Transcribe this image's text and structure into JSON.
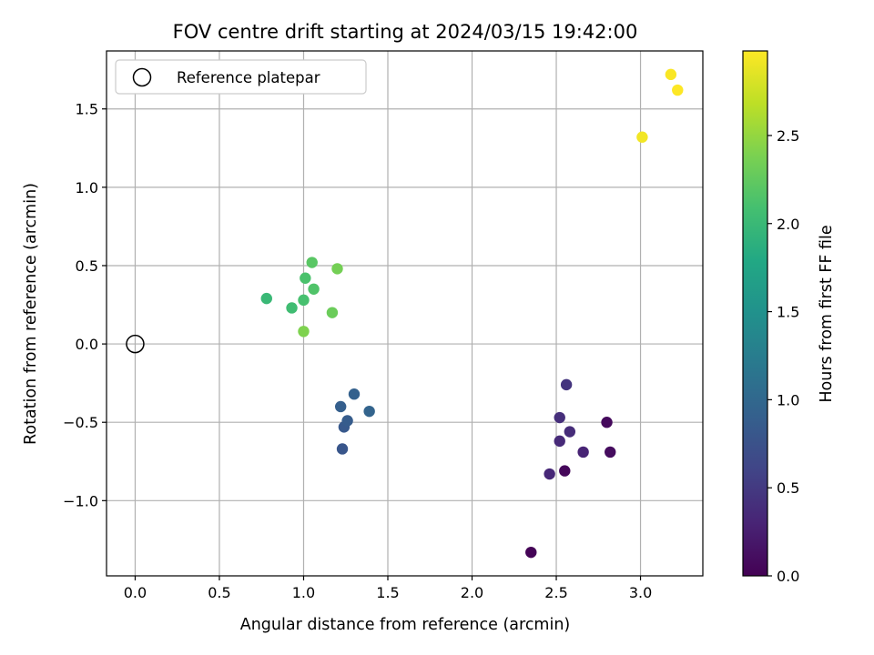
{
  "chart_data": {
    "type": "scatter",
    "title": "FOV centre drift starting at 2024/03/15 19:42:00",
    "xlabel": "Angular distance from reference (arcmin)",
    "ylabel": "Rotation from reference (arcmin)",
    "xlim": [
      -0.17,
      3.37
    ],
    "ylim": [
      -1.48,
      1.87
    ],
    "xticks": [
      0.0,
      0.5,
      1.0,
      1.5,
      2.0,
      2.5,
      3.0
    ],
    "xtick_labels": [
      "0.0",
      "0.5",
      "1.0",
      "1.5",
      "2.0",
      "2.5",
      "3.0"
    ],
    "yticks": [
      -1.0,
      -0.5,
      0.0,
      0.5,
      1.0,
      1.5
    ],
    "ytick_labels": [
      "−1.0",
      "−0.5",
      "0.0",
      "0.5",
      "1.0",
      "1.5"
    ],
    "grid": true,
    "legend": {
      "position": "top-left",
      "entries": [
        "Reference platepar"
      ]
    },
    "reference_point": {
      "x": 0.0,
      "y": 0.0,
      "marker": "hollow-circle",
      "color": "#000000"
    },
    "colorbar": {
      "label": "Hours from first FF file",
      "colormap": "viridis",
      "range": [
        0.0,
        2.98
      ],
      "ticks": [
        0.0,
        0.5,
        1.0,
        1.5,
        2.0,
        2.5
      ],
      "tick_labels": [
        "0.0",
        "0.5",
        "1.0",
        "1.5",
        "2.0",
        "2.5"
      ]
    },
    "points": [
      {
        "x": 2.35,
        "y": -1.33,
        "hours": 0.02
      },
      {
        "x": 2.55,
        "y": -0.81,
        "hours": 0.05
      },
      {
        "x": 2.8,
        "y": -0.5,
        "hours": 0.07
      },
      {
        "x": 2.82,
        "y": -0.69,
        "hours": 0.09
      },
      {
        "x": 2.66,
        "y": -0.69,
        "hours": 0.3
      },
      {
        "x": 2.46,
        "y": -0.83,
        "hours": 0.33
      },
      {
        "x": 2.52,
        "y": -0.62,
        "hours": 0.35
      },
      {
        "x": 2.58,
        "y": -0.56,
        "hours": 0.37
      },
      {
        "x": 2.52,
        "y": -0.47,
        "hours": 0.4
      },
      {
        "x": 2.56,
        "y": -0.26,
        "hours": 0.45
      },
      {
        "x": 1.23,
        "y": -0.67,
        "hours": 0.8
      },
      {
        "x": 1.24,
        "y": -0.53,
        "hours": 0.83
      },
      {
        "x": 1.26,
        "y": -0.49,
        "hours": 0.86
      },
      {
        "x": 1.22,
        "y": -0.4,
        "hours": 0.89
      },
      {
        "x": 1.3,
        "y": -0.32,
        "hours": 0.92
      },
      {
        "x": 1.39,
        "y": -0.43,
        "hours": 0.95
      },
      {
        "x": 0.78,
        "y": 0.29,
        "hours": 2.0
      },
      {
        "x": 0.93,
        "y": 0.23,
        "hours": 2.05
      },
      {
        "x": 1.0,
        "y": 0.28,
        "hours": 2.1
      },
      {
        "x": 1.01,
        "y": 0.42,
        "hours": 2.12
      },
      {
        "x": 1.06,
        "y": 0.35,
        "hours": 2.15
      },
      {
        "x": 1.05,
        "y": 0.52,
        "hours": 2.2
      },
      {
        "x": 1.17,
        "y": 0.2,
        "hours": 2.3
      },
      {
        "x": 1.2,
        "y": 0.48,
        "hours": 2.35
      },
      {
        "x": 1.0,
        "y": 0.08,
        "hours": 2.4
      },
      {
        "x": 3.01,
        "y": 1.32,
        "hours": 2.93
      },
      {
        "x": 3.18,
        "y": 1.72,
        "hours": 2.96
      },
      {
        "x": 3.22,
        "y": 1.62,
        "hours": 2.98
      }
    ]
  }
}
